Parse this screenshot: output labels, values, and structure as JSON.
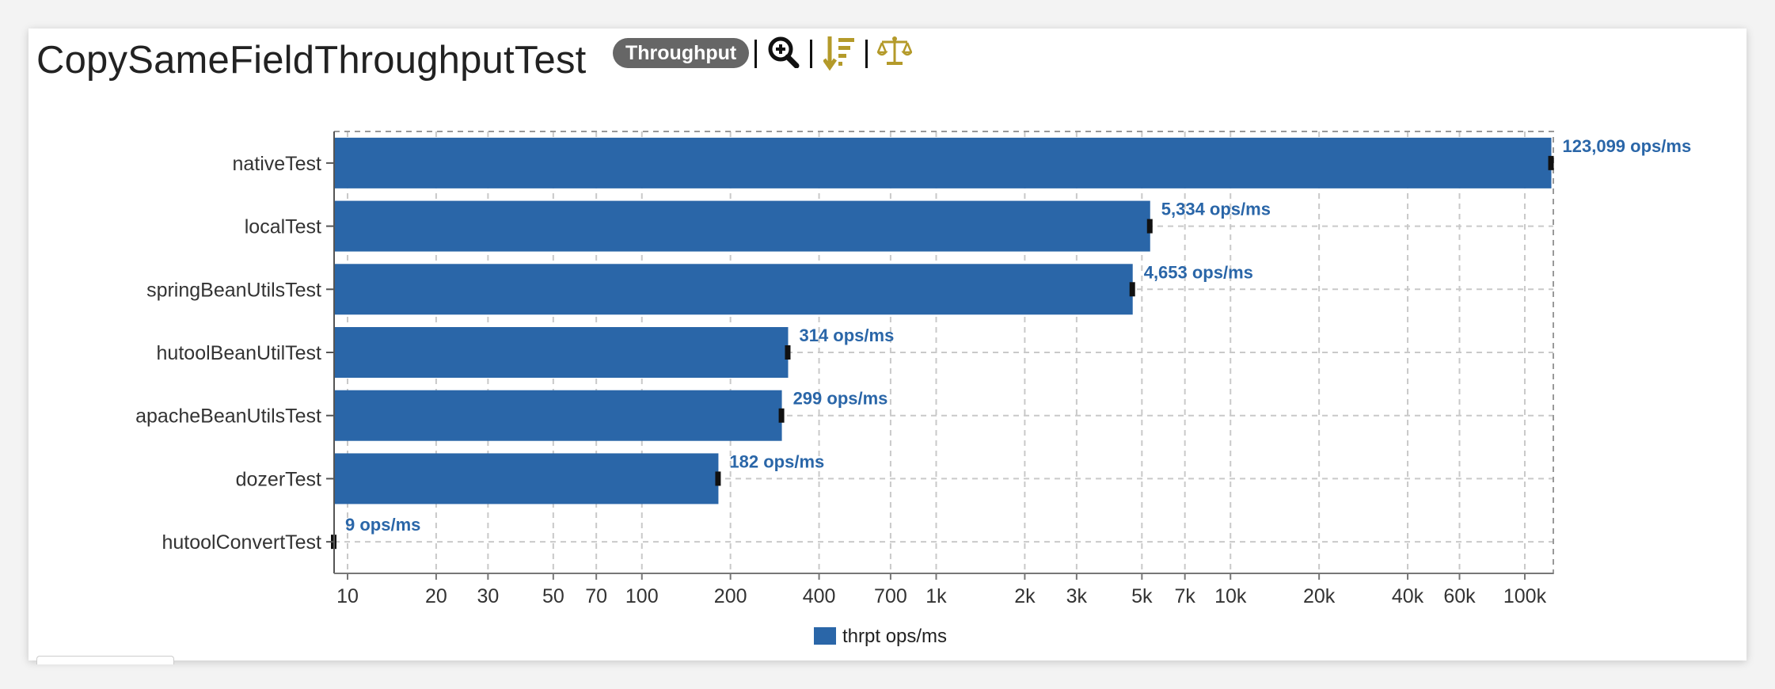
{
  "header": {
    "title": "CopySameFieldThroughputTest",
    "mode_badge": "Throughput",
    "tools": [
      "zoom-icon",
      "sort-descending-icon",
      "balance-scale-icon"
    ]
  },
  "colors": {
    "bar": "#2a66a8",
    "label": "#2a66a8",
    "icon_accent": "#b49a2a",
    "error_bar": "#111111"
  },
  "chart_data": {
    "type": "bar",
    "orientation": "horizontal",
    "x_scale": "log",
    "categories": [
      "nativeTest",
      "localTest",
      "springBeanUtilsTest",
      "hutoolBeanUtilTest",
      "apacheBeanUtilsTest",
      "dozerTest",
      "hutoolConvertTest"
    ],
    "values": [
      123099,
      5334,
      4653,
      314,
      299,
      182,
      9
    ],
    "value_labels": [
      "123,099 ops/ms",
      "5,334 ops/ms",
      "4,653 ops/ms",
      "314 ops/ms",
      "299 ops/ms",
      "182 ops/ms",
      "9 ops/ms"
    ],
    "series": [
      {
        "name": "thrpt ops/ms",
        "values": [
          123099,
          5334,
          4653,
          314,
          299,
          182,
          9
        ]
      }
    ],
    "xlim": [
      9,
      125000
    ],
    "xticks": [
      {
        "value": 10,
        "label": "10"
      },
      {
        "value": 20,
        "label": "20"
      },
      {
        "value": 30,
        "label": "30"
      },
      {
        "value": 50,
        "label": "50"
      },
      {
        "value": 70,
        "label": "70"
      },
      {
        "value": 100,
        "label": "100"
      },
      {
        "value": 200,
        "label": "200"
      },
      {
        "value": 400,
        "label": "400"
      },
      {
        "value": 700,
        "label": "700"
      },
      {
        "value": 1000,
        "label": "1k"
      },
      {
        "value": 2000,
        "label": "2k"
      },
      {
        "value": 3000,
        "label": "3k"
      },
      {
        "value": 5000,
        "label": "5k"
      },
      {
        "value": 7000,
        "label": "7k"
      },
      {
        "value": 10000,
        "label": "10k"
      },
      {
        "value": 20000,
        "label": "20k"
      },
      {
        "value": 40000,
        "label": "40k"
      },
      {
        "value": 60000,
        "label": "60k"
      },
      {
        "value": 100000,
        "label": "100k"
      }
    ],
    "grid": true,
    "legend": "bottom-center",
    "legend_label": "thrpt ops/ms"
  }
}
